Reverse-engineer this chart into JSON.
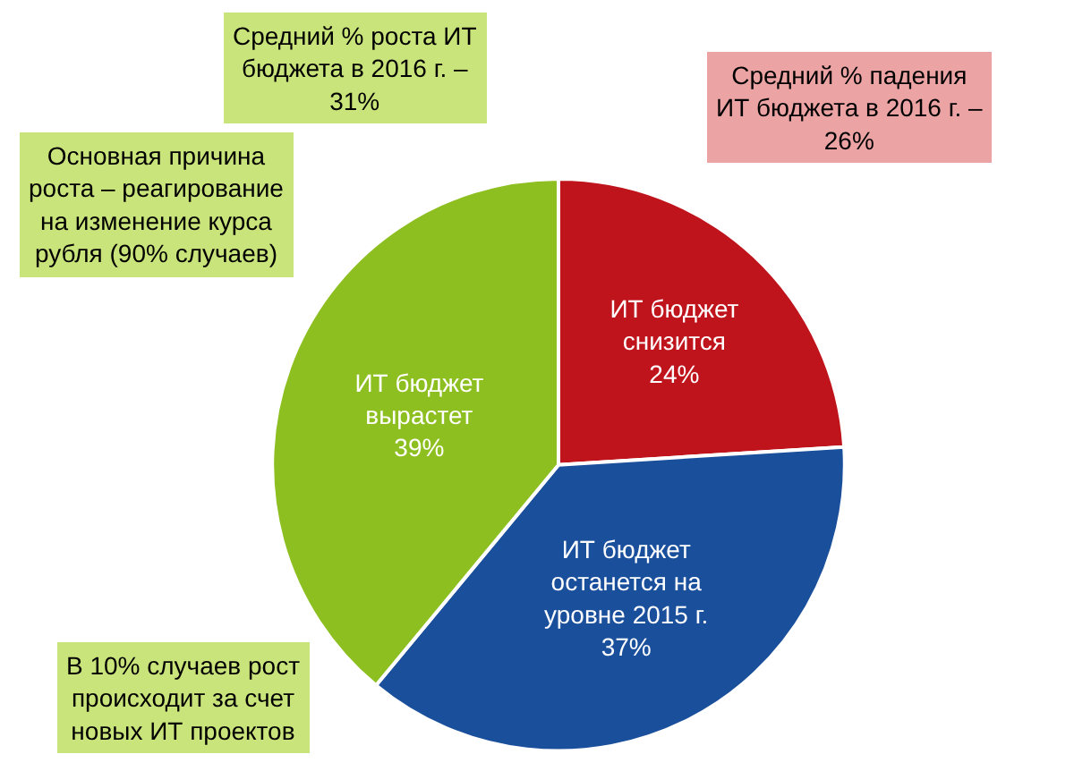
{
  "chart_data": {
    "type": "pie",
    "categories": [
      "ИТ бюджет\nснизится",
      "ИТ бюджет\nостанется на\nуровне 2015 г.",
      "ИТ бюджет\nвырастет"
    ],
    "values": [
      24,
      37,
      39
    ],
    "value_labels": [
      "24%",
      "37%",
      "39%"
    ],
    "colors": [
      "#c0141c",
      "#1a4f9c",
      "#8cbf1f"
    ],
    "legend": false,
    "annotations": [
      "Средний % роста ИТ\nбюджета в 2016 г. –\n31%",
      "Средний % падения\nИТ бюджета в 2016 г. –\n26%",
      "Основная причина\nроста – реагирование\nна изменение курса\nрубля (90% случаев)",
      "В 10% случаев рост\nпроисходит за счет\nновых ИТ проектов"
    ]
  }
}
